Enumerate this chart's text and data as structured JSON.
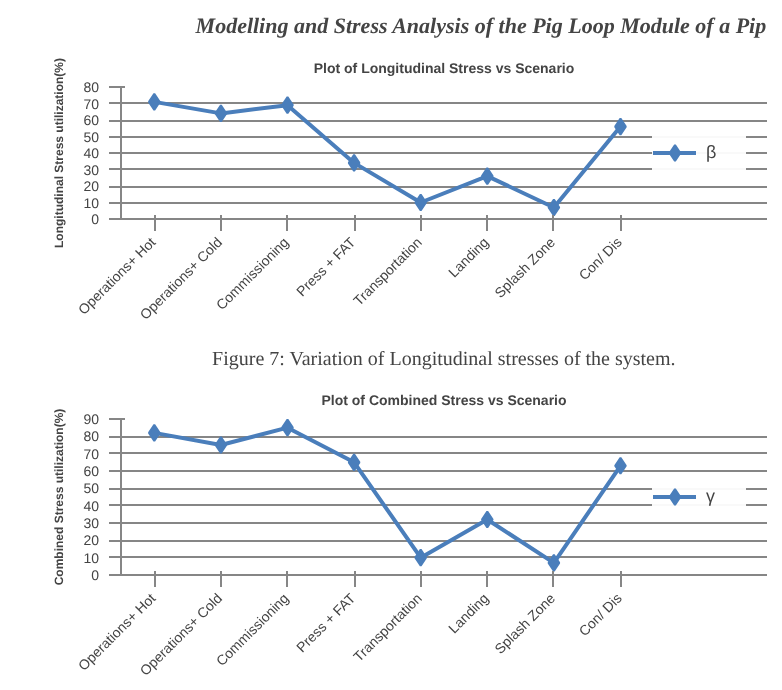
{
  "chart_data": [
    {
      "type": "line",
      "title": "Plot of Longitudinal Stress vs Scenario",
      "ylabel": "Longitudinal Stress utilization(%)",
      "categories": [
        "Operations+ Hot",
        "Operations+ Cold",
        "Commissioning",
        "Press + FAT",
        "Transportation",
        "Landing",
        "Splash Zone",
        "Con/ Dis"
      ],
      "series": [
        {
          "name": "β",
          "color": "#4a7ebb",
          "values": [
            71,
            64,
            69,
            34,
            10,
            26,
            7,
            56
          ]
        }
      ],
      "ylim": [
        0,
        80
      ],
      "yticks": [
        0,
        10,
        20,
        30,
        40,
        50,
        60,
        70,
        80
      ],
      "grid": "y",
      "legend": "right",
      "marker": "diamond",
      "annotations": [
        "Modelling and Stress Analysis of the Pig Loop Module of a Pip",
        "Figure 7: Variation of Longitudinal stresses of the system."
      ]
    },
    {
      "type": "line",
      "title": "Plot of Combined Stress vs Scenario",
      "ylabel": "Combined Stress utilization(%)",
      "categories": [
        "Operations+ Hot",
        "Operations+ Cold",
        "Commissioning",
        "Press + FAT",
        "Transportation",
        "Landing",
        "Splash Zone",
        "Con/ Dis"
      ],
      "series": [
        {
          "name": "γ",
          "color": "#4a7ebb",
          "values": [
            82,
            75,
            85,
            65,
            10,
            32,
            7,
            63
          ]
        }
      ],
      "ylim": [
        0,
        90
      ],
      "yticks": [
        0,
        10,
        20,
        30,
        40,
        50,
        60,
        70,
        80,
        90
      ],
      "grid": "y",
      "legend": "right",
      "marker": "diamond"
    }
  ]
}
